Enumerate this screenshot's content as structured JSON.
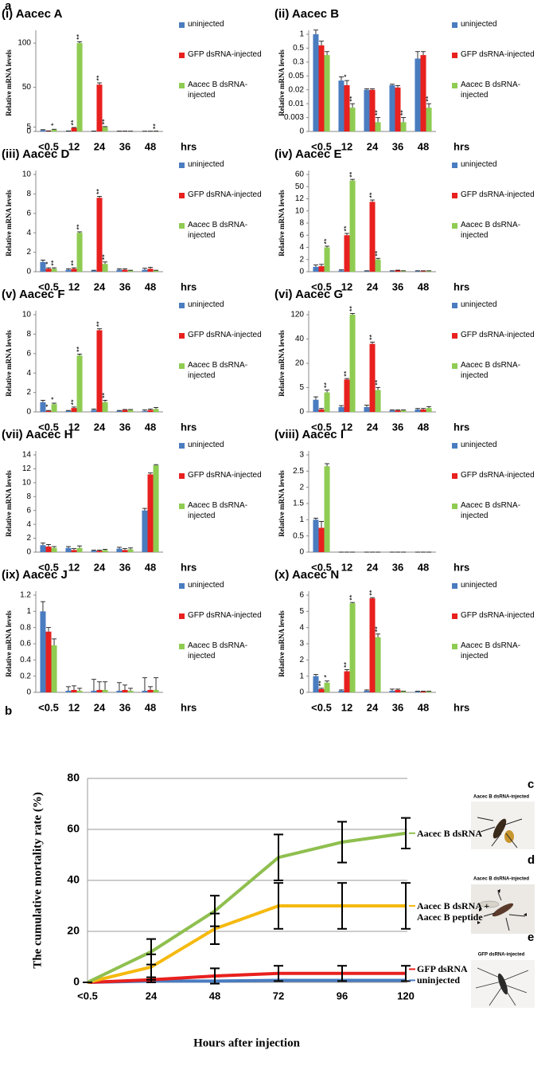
{
  "panels": {
    "a": "a",
    "b": "b",
    "c": "c",
    "d": "d",
    "e": "e"
  },
  "photos": [
    {
      "label": "Aacec B dsRNA-injected"
    },
    {
      "label": "Aacec B dsRNA-injected"
    },
    {
      "label": "GFP dsRNA-injected"
    }
  ],
  "chart_data": [
    {
      "type": "bar",
      "title": "(i) Aacec A",
      "x_label": "hrs",
      "y_label": "Relative mRNA levels",
      "categories": [
        "<0.5",
        "12",
        "24",
        "36",
        "48"
      ],
      "ylim": [
        0,
        110
      ],
      "yticks": [
        0,
        5,
        50,
        100
      ],
      "series": [
        {
          "name": "uninjected",
          "color": "#4a7cc0",
          "values": [
            1.5,
            0.3,
            0.3,
            0.3,
            0.2
          ],
          "errors": [
            0.5,
            0.3,
            0.2,
            0.1,
            0.1
          ]
        },
        {
          "name": "GFP dsRNA-injected",
          "color": "#e8201e",
          "values": [
            0.5,
            4,
            53,
            0.3,
            0.2
          ],
          "errors": [
            0.2,
            0.5,
            2,
            0.1,
            0.1
          ],
          "stars": [
            null,
            "**",
            "**",
            null,
            null
          ]
        },
        {
          "name": "Aacec B dsRNA-injected",
          "color": "#8fcc52",
          "values": [
            2,
            100,
            5,
            0.2,
            0.3
          ],
          "errors": [
            0.5,
            1.5,
            0.5,
            0.1,
            0.1
          ],
          "stars": [
            "*",
            "**",
            "**",
            null,
            "**"
          ]
        }
      ]
    },
    {
      "type": "bar",
      "title": "(ii) Aacec B",
      "x_label": "hrs",
      "y_label": "Relative mRNA levels",
      "categories": [
        "<0.5",
        "12",
        "24",
        "36",
        "48"
      ],
      "yscale": "piecewise",
      "ylim": [
        0,
        1
      ],
      "yticks": [
        0,
        0.003,
        0.01,
        0.02,
        0.05,
        0.3,
        0.5,
        1
      ],
      "series": [
        {
          "name": "uninjected",
          "color": "#4a7cc0",
          "values": [
            1,
            0.04,
            0.02,
            0.03,
            0.35
          ],
          "errors": [
            0.15,
            0.008,
            0.002,
            0.002,
            0.1
          ]
        },
        {
          "name": "GFP dsRNA-injected",
          "color": "#e8201e",
          "values": [
            0.6,
            0.03,
            0.02,
            0.025,
            0.4
          ],
          "errors": [
            0.15,
            0.01,
            0.002,
            0.004,
            0.05
          ],
          "stars": [
            null,
            "*",
            null,
            null,
            null
          ]
        },
        {
          "name": "Aacec B dsRNA-injected",
          "color": "#8fcc52",
          "values": [
            0.4,
            0.008,
            0.002,
            0.002,
            0.008
          ],
          "errors": [
            0.05,
            0.002,
            0.001,
            0.001,
            0.002
          ],
          "stars": [
            null,
            "**",
            "**",
            "**",
            "**"
          ]
        }
      ]
    },
    {
      "type": "bar",
      "title": "(iii) Aacec D",
      "x_label": "hrs",
      "y_label": "Relative mRNA levels",
      "categories": [
        "<0.5",
        "12",
        "24",
        "36",
        "48"
      ],
      "ylim": [
        0,
        10
      ],
      "yticks": [
        0,
        2,
        4,
        6,
        8,
        10
      ],
      "series": [
        {
          "name": "uninjected",
          "color": "#4a7cc0",
          "values": [
            1,
            0.2,
            0.1,
            0.2,
            0.2
          ],
          "errors": [
            0.2,
            0.1,
            0.05,
            0.1,
            0.15
          ]
        },
        {
          "name": "GFP dsRNA-injected",
          "color": "#e8201e",
          "values": [
            0.3,
            0.3,
            7.6,
            0.2,
            0.3
          ],
          "errors": [
            0.1,
            0.1,
            0.15,
            0.1,
            0.15
          ],
          "stars": [
            "*",
            "**",
            "**",
            null,
            null
          ]
        },
        {
          "name": "Aacec B dsRNA-injected",
          "color": "#8fcc52",
          "values": [
            0.3,
            4,
            0.8,
            0.1,
            0.1
          ],
          "errors": [
            0.1,
            0.1,
            0.2,
            0.05,
            0.05
          ],
          "stars": [
            "**",
            "**",
            "**",
            null,
            null
          ]
        }
      ]
    },
    {
      "type": "bar",
      "title": "(iv) Aacec E",
      "x_label": "hrs",
      "y_label": "Relative mRNA levels",
      "categories": [
        "<0.5",
        "12",
        "24",
        "36",
        "48"
      ],
      "yscale": "piecewise",
      "ylim": [
        0,
        60
      ],
      "yticks": [
        0,
        2,
        4,
        6,
        8,
        10,
        12,
        50,
        60
      ],
      "series": [
        {
          "name": "uninjected",
          "color": "#4a7cc0",
          "values": [
            0.8,
            0.2,
            0.1,
            0.1,
            0.1
          ],
          "errors": [
            0.3,
            0.1,
            0.05,
            0.05,
            0.05
          ]
        },
        {
          "name": "GFP dsRNA-injected",
          "color": "#e8201e",
          "values": [
            0.9,
            6,
            11.5,
            0.2,
            0.1
          ],
          "errors": [
            0.3,
            0.3,
            0.3,
            0.05,
            0.05
          ],
          "stars": [
            null,
            "**",
            "**",
            null,
            null
          ]
        },
        {
          "name": "Aacec B dsRNA-injected",
          "color": "#8fcc52",
          "values": [
            4,
            55,
            2,
            0.1,
            0.1
          ],
          "errors": [
            0.2,
            1,
            0.2,
            0.05,
            0.05
          ],
          "stars": [
            "**",
            "**",
            "**",
            null,
            null
          ]
        }
      ]
    },
    {
      "type": "bar",
      "title": "(v) Aacec F",
      "x_label": "hrs",
      "y_label": "Relative mRNA levels",
      "categories": [
        "<0.5",
        "12",
        "24",
        "36",
        "48"
      ],
      "ylim": [
        0,
        10
      ],
      "yticks": [
        0,
        2,
        4,
        6,
        8,
        10
      ],
      "series": [
        {
          "name": "uninjected",
          "color": "#4a7cc0",
          "values": [
            1,
            0.1,
            0.2,
            0.1,
            0.1
          ],
          "errors": [
            0.2,
            0.05,
            0.1,
            0.05,
            0.1
          ]
        },
        {
          "name": "GFP dsRNA-injected",
          "color": "#e8201e",
          "values": [
            0.1,
            0.4,
            8.4,
            0.2,
            0.2
          ],
          "errors": [
            0.05,
            0.1,
            0.15,
            0.05,
            0.1
          ],
          "stars": [
            "*",
            "**",
            "**",
            null,
            null
          ]
        },
        {
          "name": "Aacec B dsRNA-injected",
          "color": "#8fcc52",
          "values": [
            0.8,
            5.8,
            1,
            0.2,
            0.3
          ],
          "errors": [
            0.1,
            0.15,
            0.2,
            0.05,
            0.15
          ],
          "stars": [
            "*",
            "**",
            "**",
            null,
            null
          ]
        }
      ]
    },
    {
      "type": "bar",
      "title": "(vi) Aacec G",
      "x_label": "hrs",
      "y_label": "Relative mRNA levels",
      "categories": [
        "<0.5",
        "12",
        "24",
        "36",
        "48"
      ],
      "yscale": "piecewise",
      "ylim": [
        0,
        120
      ],
      "yticks": [
        0,
        5,
        20,
        40,
        120
      ],
      "series": [
        {
          "name": "uninjected",
          "color": "#4a7cc0",
          "values": [
            2.5,
            1,
            1,
            0.3,
            0.5
          ],
          "errors": [
            0.6,
            0.3,
            0.4,
            0.1,
            0.2
          ]
        },
        {
          "name": "GFP dsRNA-injected",
          "color": "#e8201e",
          "values": [
            0.5,
            10,
            36,
            0.3,
            0.5
          ],
          "errors": [
            0.2,
            0.6,
            1.5,
            0.1,
            0.2
          ],
          "stars": [
            null,
            "**",
            "**",
            null,
            null
          ]
        },
        {
          "name": "Aacec B dsRNA-injected",
          "color": "#8fcc52",
          "values": [
            4,
            120,
            4.5,
            0.3,
            0.8
          ],
          "errors": [
            0.5,
            4,
            0.6,
            0.1,
            0.3
          ],
          "stars": [
            "**",
            "**",
            "**",
            null,
            null
          ]
        }
      ]
    },
    {
      "type": "bar",
      "title": "(vii) Aacec H",
      "x_label": "hrs",
      "y_label": "Relative mRNA levels",
      "categories": [
        "<0.5",
        "12",
        "24",
        "36",
        "48"
      ],
      "ylim": [
        0,
        14
      ],
      "yticks": [
        0,
        2,
        4,
        6,
        8,
        10,
        12,
        14
      ],
      "series": [
        {
          "name": "uninjected",
          "color": "#4a7cc0",
          "values": [
            1,
            0.6,
            0.2,
            0.5,
            6
          ],
          "errors": [
            0.3,
            0.2,
            0.1,
            0.2,
            0.3
          ]
        },
        {
          "name": "GFP dsRNA-injected",
          "color": "#e8201e",
          "values": [
            0.8,
            0.3,
            0.2,
            0.3,
            11.2
          ],
          "errors": [
            0.3,
            0.2,
            0.1,
            0.2,
            0.2
          ]
        },
        {
          "name": "Aacec B dsRNA-injected",
          "color": "#8fcc52",
          "values": [
            0.6,
            0.6,
            0.3,
            0.4,
            12.5
          ],
          "errors": [
            0.2,
            0.3,
            0.1,
            0.2,
            0.1
          ]
        }
      ]
    },
    {
      "type": "bar",
      "title": "(viii) Aacec I",
      "x_label": "hrs",
      "y_label": "Relative mRNA levels",
      "categories": [
        "<0.5",
        "12",
        "24",
        "36",
        "48"
      ],
      "ylim": [
        0,
        3
      ],
      "yticks": [
        0,
        0.5,
        1,
        1.5,
        2,
        2.5,
        3
      ],
      "series": [
        {
          "name": "uninjected",
          "color": "#4a7cc0",
          "values": [
            1,
            0,
            0,
            0,
            0
          ],
          "errors": [
            0.05,
            0,
            0,
            0,
            0
          ]
        },
        {
          "name": "GFP dsRNA-injected",
          "color": "#e8201e",
          "values": [
            0.75,
            0,
            0,
            0,
            0
          ],
          "errors": [
            0.2,
            0,
            0,
            0,
            0
          ]
        },
        {
          "name": "Aacec B dsRNA-injected",
          "color": "#8fcc52",
          "values": [
            2.65,
            0,
            0,
            0,
            0
          ],
          "errors": [
            0.08,
            0,
            0,
            0,
            0
          ]
        }
      ]
    },
    {
      "type": "bar",
      "title": "(ix) Aacec J",
      "x_label": "hrs",
      "y_label": "Relative mRNA levels",
      "categories": [
        "<0.5",
        "12",
        "24",
        "36",
        "48"
      ],
      "ylim": [
        0,
        1.2
      ],
      "yticks": [
        0,
        0.2,
        0.4,
        0.6,
        0.8,
        1,
        1.2
      ],
      "series": [
        {
          "name": "uninjected",
          "color": "#4a7cc0",
          "values": [
            1,
            0.02,
            0.02,
            0.02,
            0.02
          ],
          "errors": [
            0.12,
            0.05,
            0.14,
            0.1,
            0.16
          ]
        },
        {
          "name": "GFP dsRNA-injected",
          "color": "#e8201e",
          "values": [
            0.75,
            0.03,
            0.03,
            0.03,
            0.03
          ],
          "errors": [
            0.05,
            0.05,
            0.1,
            0.06,
            0.04
          ]
        },
        {
          "name": "Aacec B dsRNA-injected",
          "color": "#8fcc52",
          "values": [
            0.58,
            0.02,
            0.03,
            0.02,
            0.03
          ],
          "errors": [
            0.08,
            0.03,
            0.1,
            0.03,
            0.15
          ]
        }
      ]
    },
    {
      "type": "bar",
      "title": "(x) Aacec N",
      "x_label": "hrs",
      "y_label": "Relative mRNA levels",
      "categories": [
        "<0.5",
        "12",
        "24",
        "36",
        "48"
      ],
      "ylim": [
        0,
        6
      ],
      "yticks": [
        0,
        1,
        2,
        3,
        4,
        5,
        6
      ],
      "series": [
        {
          "name": "uninjected",
          "color": "#4a7cc0",
          "values": [
            1,
            0.1,
            0.1,
            0.1,
            0.05
          ],
          "errors": [
            0.1,
            0.05,
            0.05,
            0.1,
            0.02
          ]
        },
        {
          "name": "GFP dsRNA-injected",
          "color": "#e8201e",
          "values": [
            0.2,
            1.3,
            5.8,
            0.15,
            0.05
          ],
          "errors": [
            0.05,
            0.1,
            0.05,
            0.05,
            0.02
          ],
          "stars": [
            "**",
            "**",
            "**",
            null,
            null
          ]
        },
        {
          "name": "Aacec B dsRNA-injected",
          "color": "#8fcc52",
          "values": [
            0.6,
            5.5,
            3.4,
            0.05,
            0.05
          ],
          "errors": [
            0.1,
            0.05,
            0.2,
            0.02,
            0.02
          ],
          "stars": [
            "*",
            "**",
            "**",
            null,
            null
          ]
        }
      ]
    },
    {
      "type": "line",
      "x_label": "Hours after injection",
      "y_label": "The cumulative mortality rate (%)",
      "categories": [
        "<0.5",
        "24",
        "48",
        "72",
        "96",
        "120"
      ],
      "ylim": [
        0,
        80
      ],
      "yticks": [
        0,
        20,
        40,
        60,
        80
      ],
      "grid": true,
      "series": [
        {
          "name": "Aacec B dsRNA",
          "color": "#8fbf4f",
          "values": [
            0,
            12,
            28,
            49,
            55,
            58.5
          ],
          "errors": [
            0,
            5,
            6,
            9,
            8,
            6
          ]
        },
        {
          "name": "Aacec B dsRNA + Aacec B peptide",
          "color": "#f5b90f",
          "values": [
            0,
            6,
            21,
            30,
            30,
            30
          ],
          "errors": [
            0,
            5,
            6,
            9,
            9,
            9
          ]
        },
        {
          "name": "GFP dsRNA",
          "color": "#e8201e",
          "values": [
            0,
            1,
            2.5,
            3.5,
            3.5,
            3.5
          ],
          "errors": [
            0,
            1,
            3,
            3,
            3,
            3
          ]
        },
        {
          "name": "uninjected",
          "color": "#4a7cc0",
          "values": [
            0,
            0.5,
            0.5,
            0.8,
            0.8,
            0.8
          ]
        }
      ]
    }
  ]
}
